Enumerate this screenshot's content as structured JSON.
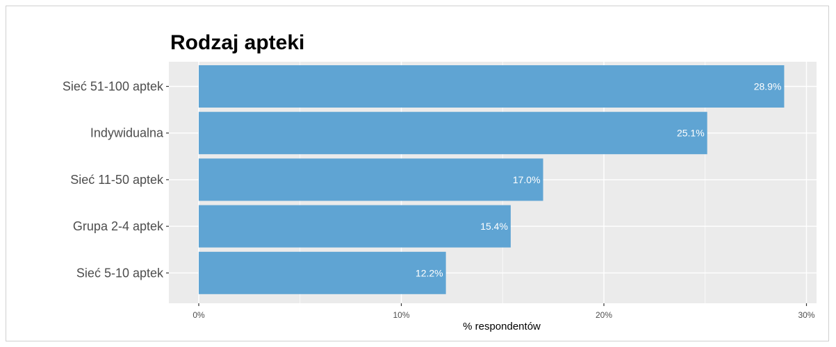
{
  "chart_data": {
    "type": "bar",
    "orientation": "horizontal",
    "title": "Rodzaj apteki",
    "xlabel": "% respondentów",
    "ylabel": "",
    "xlim": [
      0,
      30
    ],
    "x_ticks": [
      0,
      10,
      20,
      30
    ],
    "x_tick_labels": [
      "0%",
      "10%",
      "20%",
      "30%"
    ],
    "categories": [
      "Sieć 51-100 aptek",
      "Indywidualna",
      "Sieć 11-50 aptek",
      "Grupa 2-4 aptek",
      "Sieć 5-10 aptek"
    ],
    "values": [
      28.9,
      25.1,
      17.0,
      15.4,
      12.2
    ],
    "value_labels": [
      "28.9%",
      "25.1%",
      "17.0%",
      "15.4%",
      "12.2%"
    ],
    "bar_color": "#5fa4d3",
    "panel_background": "#ebebeb",
    "grid": true
  }
}
